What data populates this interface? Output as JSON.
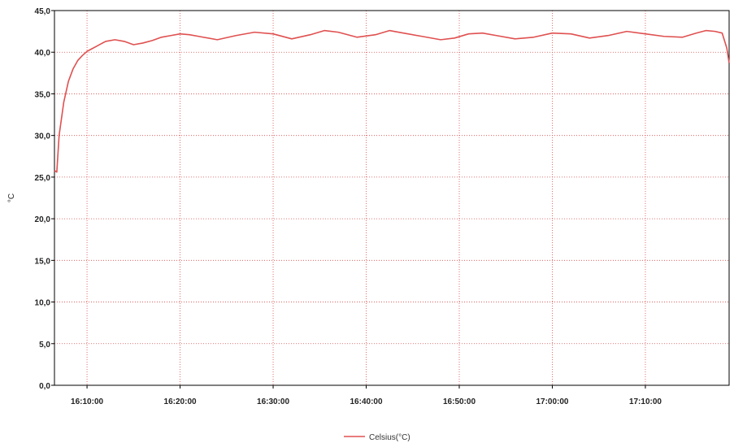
{
  "chart_data": {
    "type": "line",
    "title": "",
    "xlabel": "",
    "ylabel": "°C",
    "ylim": [
      0,
      45
    ],
    "yticks": [
      "0,0",
      "5,0",
      "10,0",
      "15,0",
      "20,0",
      "25,0",
      "30,0",
      "35,0",
      "40,0",
      "45,0"
    ],
    "xlim": [
      "16:06:30",
      "17:19:00"
    ],
    "xticks": [
      "16:10:00",
      "16:20:00",
      "16:30:00",
      "16:40:00",
      "16:50:00",
      "17:00:00",
      "17:10:00"
    ],
    "grid": true,
    "legend_position": "bottom-center",
    "series": [
      {
        "name": "Celsius(°C)",
        "color": "#e05050",
        "x": [
          "16:06:30",
          "16:06:45",
          "16:07:00",
          "16:07:30",
          "16:08:00",
          "16:08:30",
          "16:09:00",
          "16:09:30",
          "16:10:00",
          "16:10:30",
          "16:11:00",
          "16:11:30",
          "16:12:00",
          "16:13:00",
          "16:14:00",
          "16:15:00",
          "16:16:00",
          "16:17:00",
          "16:18:00",
          "16:19:00",
          "16:20:00",
          "16:21:00",
          "16:22:00",
          "16:24:00",
          "16:26:00",
          "16:28:00",
          "16:30:00",
          "16:32:00",
          "16:34:00",
          "16:35:30",
          "16:37:00",
          "16:39:00",
          "16:41:00",
          "16:42:30",
          "16:44:00",
          "16:46:00",
          "16:48:00",
          "16:49:30",
          "16:51:00",
          "16:52:30",
          "16:54:00",
          "16:56:00",
          "16:58:00",
          "17:00:00",
          "17:02:00",
          "17:04:00",
          "17:06:00",
          "17:08:00",
          "17:10:00",
          "17:12:00",
          "17:14:00",
          "17:15:30",
          "17:16:30",
          "17:17:30",
          "17:18:15",
          "17:18:45",
          "17:19:00"
        ],
        "y": [
          25.8,
          25.6,
          30.0,
          34.0,
          36.5,
          38.0,
          39.0,
          39.6,
          40.1,
          40.4,
          40.7,
          41.0,
          41.3,
          41.5,
          41.3,
          40.9,
          41.1,
          41.4,
          41.8,
          42.0,
          42.2,
          42.1,
          41.9,
          41.5,
          42.0,
          42.4,
          42.2,
          41.6,
          42.1,
          42.6,
          42.4,
          41.8,
          42.1,
          42.6,
          42.3,
          41.9,
          41.5,
          41.7,
          42.2,
          42.3,
          42.0,
          41.6,
          41.8,
          42.3,
          42.2,
          41.7,
          42.0,
          42.5,
          42.2,
          41.9,
          41.8,
          42.3,
          42.6,
          42.5,
          42.3,
          40.5,
          38.7
        ]
      }
    ]
  }
}
